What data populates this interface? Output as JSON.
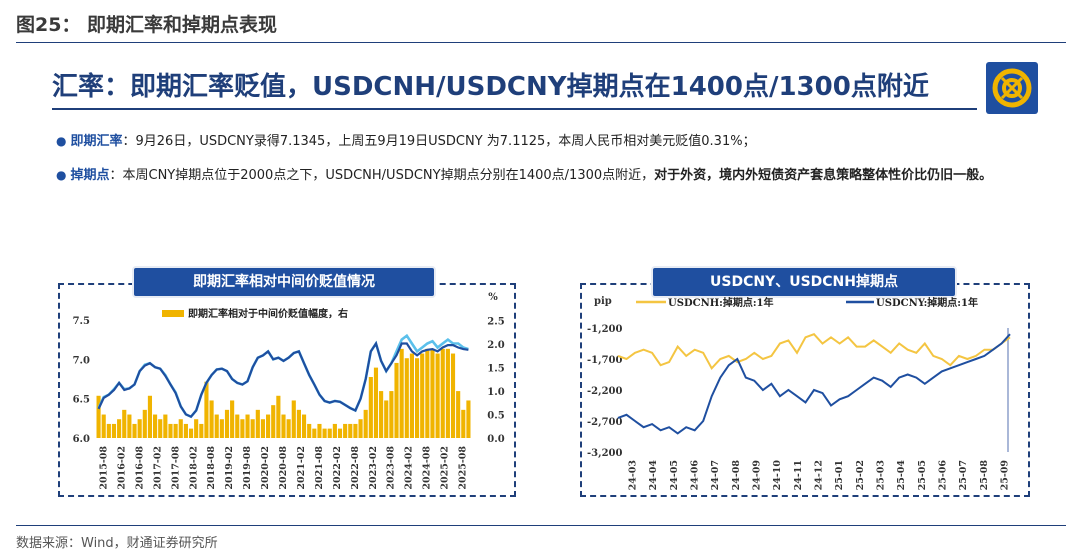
{
  "figure_title": "图25：   即期汇率和掉期点表现",
  "slide_title": "汇率：即期汇率贬值，USDCNH/USDCNY掉期点在1400点/1300点附近",
  "bullets": [
    {
      "key": "即期汇率",
      "text": "：9月26日，USDCNY录得7.1345，上周五9月19日USDCNY 为7.1125，本周人民币相对美元贬值0.31%；",
      "bold": ""
    },
    {
      "key": "掉期点",
      "text": "：本周CNY掉期点位于2000点之下，USDCNH/USDCNY掉期点分别在1400点/1300点附近，",
      "bold": "对于外资，境内外短债资产套息策略整体性价比仍旧一般。"
    }
  ],
  "source": "数据来源：Wind，财通证券研究所",
  "colors": {
    "navy": "#1f3f7a",
    "blue": "#1f4fa0",
    "gold": "#f0b400",
    "light_blue": "#5bc0eb",
    "gold_line": "#f4c542"
  },
  "chart_data": [
    {
      "type": "line",
      "title": "即期汇率相对中间价贬值情况",
      "legend": [
        "即期汇率相对于中间价贬值幅度，右"
      ],
      "y_right_unit": "%",
      "x_labels": [
        "2015-08",
        "2016-02",
        "2016-08",
        "2017-02",
        "2017-08",
        "2018-02",
        "2018-08",
        "2019-02",
        "2019-08",
        "2020-02",
        "2020-08",
        "2021-02",
        "2021-08",
        "2022-02",
        "2022-08",
        "2023-02",
        "2023-08",
        "2024-02",
        "2024-08",
        "2025-02",
        "2025-08"
      ],
      "y_left_ticks": [
        "6.0",
        "6.5",
        "7.0",
        "7.5"
      ],
      "y_right_ticks": [
        "0.0",
        "0.5",
        "1.0",
        "1.5",
        "2.0",
        "2.5"
      ],
      "ylim_left": [
        6.0,
        7.55
      ],
      "ylim_right": [
        0,
        2.6
      ],
      "series": [
        {
          "name": "",
          "values": [
            6.38,
            6.52,
            6.55,
            6.62,
            6.7,
            6.62,
            6.63,
            6.68,
            6.85,
            6.93,
            6.95,
            6.9,
            6.88,
            6.8,
            6.68,
            6.58,
            6.4,
            6.3,
            6.27,
            6.35,
            6.55,
            6.7,
            6.8,
            6.87,
            6.88,
            6.85,
            6.75,
            6.7,
            6.68,
            6.72,
            6.9,
            7.02,
            7.05,
            7.1,
            7.0,
            7.02,
            6.98,
            7.02,
            7.08,
            7.1,
            6.95,
            6.8,
            6.68,
            6.55,
            6.47,
            6.45,
            6.47,
            6.46,
            6.42,
            6.38,
            6.35,
            6.5,
            6.75,
            7.1,
            7.2,
            6.98,
            6.85,
            6.95,
            7.1,
            7.25,
            7.3,
            7.2,
            7.1,
            7.15,
            7.2,
            7.23,
            7.15,
            7.2,
            7.25,
            7.2,
            7.2,
            7.15,
            7.13
          ]
        },
        {
          "name": "",
          "values": [
            6.37,
            6.51,
            6.55,
            6.61,
            6.7,
            6.61,
            6.63,
            6.68,
            6.85,
            6.92,
            6.95,
            6.9,
            6.88,
            6.79,
            6.68,
            6.57,
            6.4,
            6.3,
            6.27,
            6.35,
            6.55,
            6.7,
            6.8,
            6.87,
            6.88,
            6.85,
            6.75,
            6.7,
            6.68,
            6.72,
            6.9,
            7.02,
            7.05,
            7.1,
            7.0,
            7.02,
            6.98,
            7.02,
            7.08,
            7.1,
            6.95,
            6.8,
            6.68,
            6.55,
            6.47,
            6.45,
            6.47,
            6.46,
            6.42,
            6.38,
            6.35,
            6.5,
            6.75,
            7.1,
            7.2,
            6.98,
            6.85,
            6.95,
            7.05,
            7.2,
            7.2,
            7.1,
            7.05,
            7.1,
            7.12,
            7.13,
            7.1,
            7.15,
            7.18,
            7.18,
            7.15,
            7.13,
            7.12
          ]
        },
        {
          "name": "",
          "values": [
            0.9,
            0.5,
            0.3,
            0.3,
            0.4,
            0.6,
            0.5,
            0.3,
            0.4,
            0.6,
            0.9,
            0.5,
            0.4,
            0.5,
            0.3,
            0.3,
            0.4,
            0.3,
            0.2,
            0.4,
            0.3,
            1.2,
            0.8,
            0.5,
            0.4,
            0.6,
            0.8,
            0.5,
            0.4,
            0.5,
            0.4,
            0.6,
            0.4,
            0.5,
            0.7,
            0.9,
            0.5,
            0.4,
            0.8,
            0.6,
            0.5,
            0.3,
            0.2,
            0.3,
            0.2,
            0.2,
            0.3,
            0.2,
            0.3,
            0.3,
            0.3,
            0.4,
            0.6,
            1.3,
            1.5,
            1.0,
            0.8,
            1.0,
            1.6,
            1.9,
            1.7,
            1.8,
            1.7,
            1.8,
            1.9,
            1.9,
            1.8,
            1.9,
            1.9,
            1.8,
            1.0,
            0.6,
            0.8
          ]
        }
      ]
    },
    {
      "type": "line",
      "title": "USDCNY、USDCNH掉期点",
      "y_unit": "pip",
      "legend": [
        "USDCNH:掉期点:1年",
        "USDCNY:掉期点:1年"
      ],
      "x_labels": [
        "24-03",
        "24-04",
        "24-05",
        "24-06",
        "24-07",
        "24-08",
        "24-09",
        "24-10",
        "24-11",
        "24-12",
        "25-01",
        "25-02",
        "25-03",
        "25-04",
        "25-05",
        "25-06",
        "25-07",
        "25-08",
        "25-09"
      ],
      "y_ticks": [
        "-1,200",
        "-1,700",
        "-2,200",
        "-2,700",
        "-3,200"
      ],
      "ylim": [
        -3200,
        -1200
      ],
      "series": [
        {
          "name": "USDCNH:掉期点:1年",
          "values": [
            -1650,
            -1700,
            -1600,
            -1550,
            -1600,
            -1800,
            -1750,
            -1500,
            -1650,
            -1550,
            -1600,
            -1850,
            -1700,
            -1650,
            -1750,
            -1700,
            -1600,
            -1700,
            -1650,
            -1450,
            -1400,
            -1600,
            -1350,
            -1300,
            -1450,
            -1350,
            -1450,
            -1350,
            -1500,
            -1500,
            -1400,
            -1500,
            -1600,
            -1450,
            -1550,
            -1600,
            -1450,
            -1650,
            -1700,
            -1800,
            -1650,
            -1700,
            -1650,
            -1550,
            -1550,
            -1450,
            -1350
          ]
        },
        {
          "name": "USDCNY:掉期点:1年",
          "values": [
            -2650,
            -2600,
            -2700,
            -2800,
            -2750,
            -2850,
            -2800,
            -2900,
            -2800,
            -2850,
            -2700,
            -2300,
            -2000,
            -1800,
            -1700,
            -2000,
            -2050,
            -2200,
            -2100,
            -2300,
            -2200,
            -2300,
            -2400,
            -2200,
            -2250,
            -2450,
            -2350,
            -2300,
            -2200,
            -2100,
            -2000,
            -2050,
            -2150,
            -2000,
            -1950,
            -2000,
            -2100,
            -2000,
            -1900,
            -1850,
            -1800,
            -1750,
            -1700,
            -1650,
            -1550,
            -1450,
            -1300
          ]
        }
      ]
    }
  ]
}
